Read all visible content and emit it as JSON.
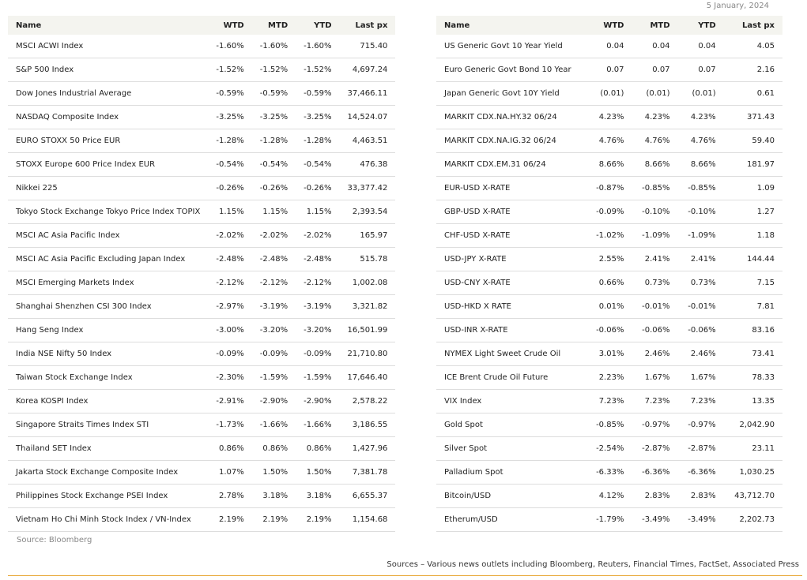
{
  "date": "5 January, 2024",
  "headers": [
    "Name",
    "WTD",
    "MTD",
    "YTD",
    "Last px"
  ],
  "left_table": [
    [
      "MSCI ACWI Index",
      "-1.60%",
      "-1.60%",
      "-1.60%",
      "715.40"
    ],
    [
      "S&P 500 Index",
      "-1.52%",
      "-1.52%",
      "-1.52%",
      "4,697.24"
    ],
    [
      "Dow Jones Industrial Average",
      "-0.59%",
      "-0.59%",
      "-0.59%",
      "37,466.11"
    ],
    [
      "NASDAQ Composite Index",
      "-3.25%",
      "-3.25%",
      "-3.25%",
      "14,524.07"
    ],
    [
      "EURO STOXX 50 Price EUR",
      "-1.28%",
      "-1.28%",
      "-1.28%",
      "4,463.51"
    ],
    [
      "STOXX Europe 600 Price Index EUR",
      "-0.54%",
      "-0.54%",
      "-0.54%",
      "476.38"
    ],
    [
      "Nikkei 225",
      "-0.26%",
      "-0.26%",
      "-0.26%",
      "33,377.42"
    ],
    [
      "Tokyo Stock Exchange Tokyo Price Index TOPIX",
      "1.15%",
      "1.15%",
      "1.15%",
      "2,393.54"
    ],
    [
      "MSCI AC Asia Pacific Index",
      "-2.02%",
      "-2.02%",
      "-2.02%",
      "165.97"
    ],
    [
      "MSCI AC Asia Pacific Excluding Japan Index",
      "-2.48%",
      "-2.48%",
      "-2.48%",
      "515.78"
    ],
    [
      "MSCI Emerging Markets Index",
      "-2.12%",
      "-2.12%",
      "-2.12%",
      "1,002.08"
    ],
    [
      "Shanghai Shenzhen CSI 300 Index",
      "-2.97%",
      "-3.19%",
      "-3.19%",
      "3,321.82"
    ],
    [
      "Hang Seng Index",
      "-3.00%",
      "-3.20%",
      "-3.20%",
      "16,501.99"
    ],
    [
      "India NSE Nifty 50 Index",
      "-0.09%",
      "-0.09%",
      "-0.09%",
      "21,710.80"
    ],
    [
      "Taiwan Stock Exchange Index",
      "-2.30%",
      "-1.59%",
      "-1.59%",
      "17,646.40"
    ],
    [
      "Korea KOSPI Index",
      "-2.91%",
      "-2.90%",
      "-2.90%",
      "2,578.22"
    ],
    [
      "Singapore Straits Times Index STI",
      "-1.73%",
      "-1.66%",
      "-1.66%",
      "3,186.55"
    ],
    [
      "Thailand SET Index",
      "0.86%",
      "0.86%",
      "0.86%",
      "1,427.96"
    ],
    [
      "Jakarta Stock Exchange Composite Index",
      "1.07%",
      "1.50%",
      "1.50%",
      "7,381.78"
    ],
    [
      "Philippines Stock Exchange PSEI Index",
      "2.78%",
      "3.18%",
      "3.18%",
      "6,655.37"
    ],
    [
      "Vietnam Ho Chi Minh Stock Index / VN-Index",
      "2.19%",
      "2.19%",
      "2.19%",
      "1,154.68"
    ]
  ],
  "right_table": [
    [
      "US Generic Govt 10 Year Yield",
      "0.04",
      "0.04",
      "0.04",
      "4.05"
    ],
    [
      "Euro Generic Govt Bond 10 Year",
      "0.07",
      "0.07",
      "0.07",
      "2.16"
    ],
    [
      "Japan Generic Govt 10Y Yield",
      "(0.01)",
      "(0.01)",
      "(0.01)",
      "0.61"
    ],
    [
      "MARKIT CDX.NA.HY.32 06/24",
      "4.23%",
      "4.23%",
      "4.23%",
      "371.43"
    ],
    [
      "MARKIT CDX.NA.IG.32 06/24",
      "4.76%",
      "4.76%",
      "4.76%",
      "59.40"
    ],
    [
      "MARKIT CDX.EM.31 06/24",
      "8.66%",
      "8.66%",
      "8.66%",
      "181.97"
    ],
    [
      "EUR-USD X-RATE",
      "-0.87%",
      "-0.85%",
      "-0.85%",
      "1.09"
    ],
    [
      "GBP-USD X-RATE",
      "-0.09%",
      "-0.10%",
      "-0.10%",
      "1.27"
    ],
    [
      "CHF-USD X-RATE",
      "-1.02%",
      "-1.09%",
      "-1.09%",
      "1.18"
    ],
    [
      "USD-JPY X-RATE",
      "2.55%",
      "2.41%",
      "2.41%",
      "144.44"
    ],
    [
      "USD-CNY X-RATE",
      "0.66%",
      "0.73%",
      "0.73%",
      "7.15"
    ],
    [
      "USD-HKD X RATE",
      "0.01%",
      "-0.01%",
      "-0.01%",
      "7.81"
    ],
    [
      "USD-INR X-RATE",
      "-0.06%",
      "-0.06%",
      "-0.06%",
      "83.16"
    ],
    [
      "NYMEX Light Sweet Crude Oil",
      "3.01%",
      "2.46%",
      "2.46%",
      "73.41"
    ],
    [
      "ICE Brent Crude Oil Future",
      "2.23%",
      "1.67%",
      "1.67%",
      "78.33"
    ],
    [
      "VIX Index",
      "7.23%",
      "7.23%",
      "7.23%",
      "13.35"
    ],
    [
      "Gold Spot",
      "-0.85%",
      "-0.97%",
      "-0.97%",
      "2,042.90"
    ],
    [
      "Silver Spot",
      "-2.54%",
      "-2.87%",
      "-2.87%",
      "23.11"
    ],
    [
      "Palladium Spot",
      "-6.33%",
      "-6.36%",
      "-6.36%",
      "1,030.25"
    ],
    [
      "Bitcoin/USD",
      "4.12%",
      "2.83%",
      "2.83%",
      "43,712.70"
    ],
    [
      "Etherum/USD",
      "-1.79%",
      "-3.49%",
      "-3.49%",
      "2,202.73"
    ]
  ],
  "source": "Source: Bloomberg",
  "sources_note": "Sources – Various news outlets including Bloomberg, Reuters, Financial Times, FactSet, Associated Press",
  "colors": {
    "header_bg": "#f4f4ef",
    "rule": "#e8a838"
  }
}
